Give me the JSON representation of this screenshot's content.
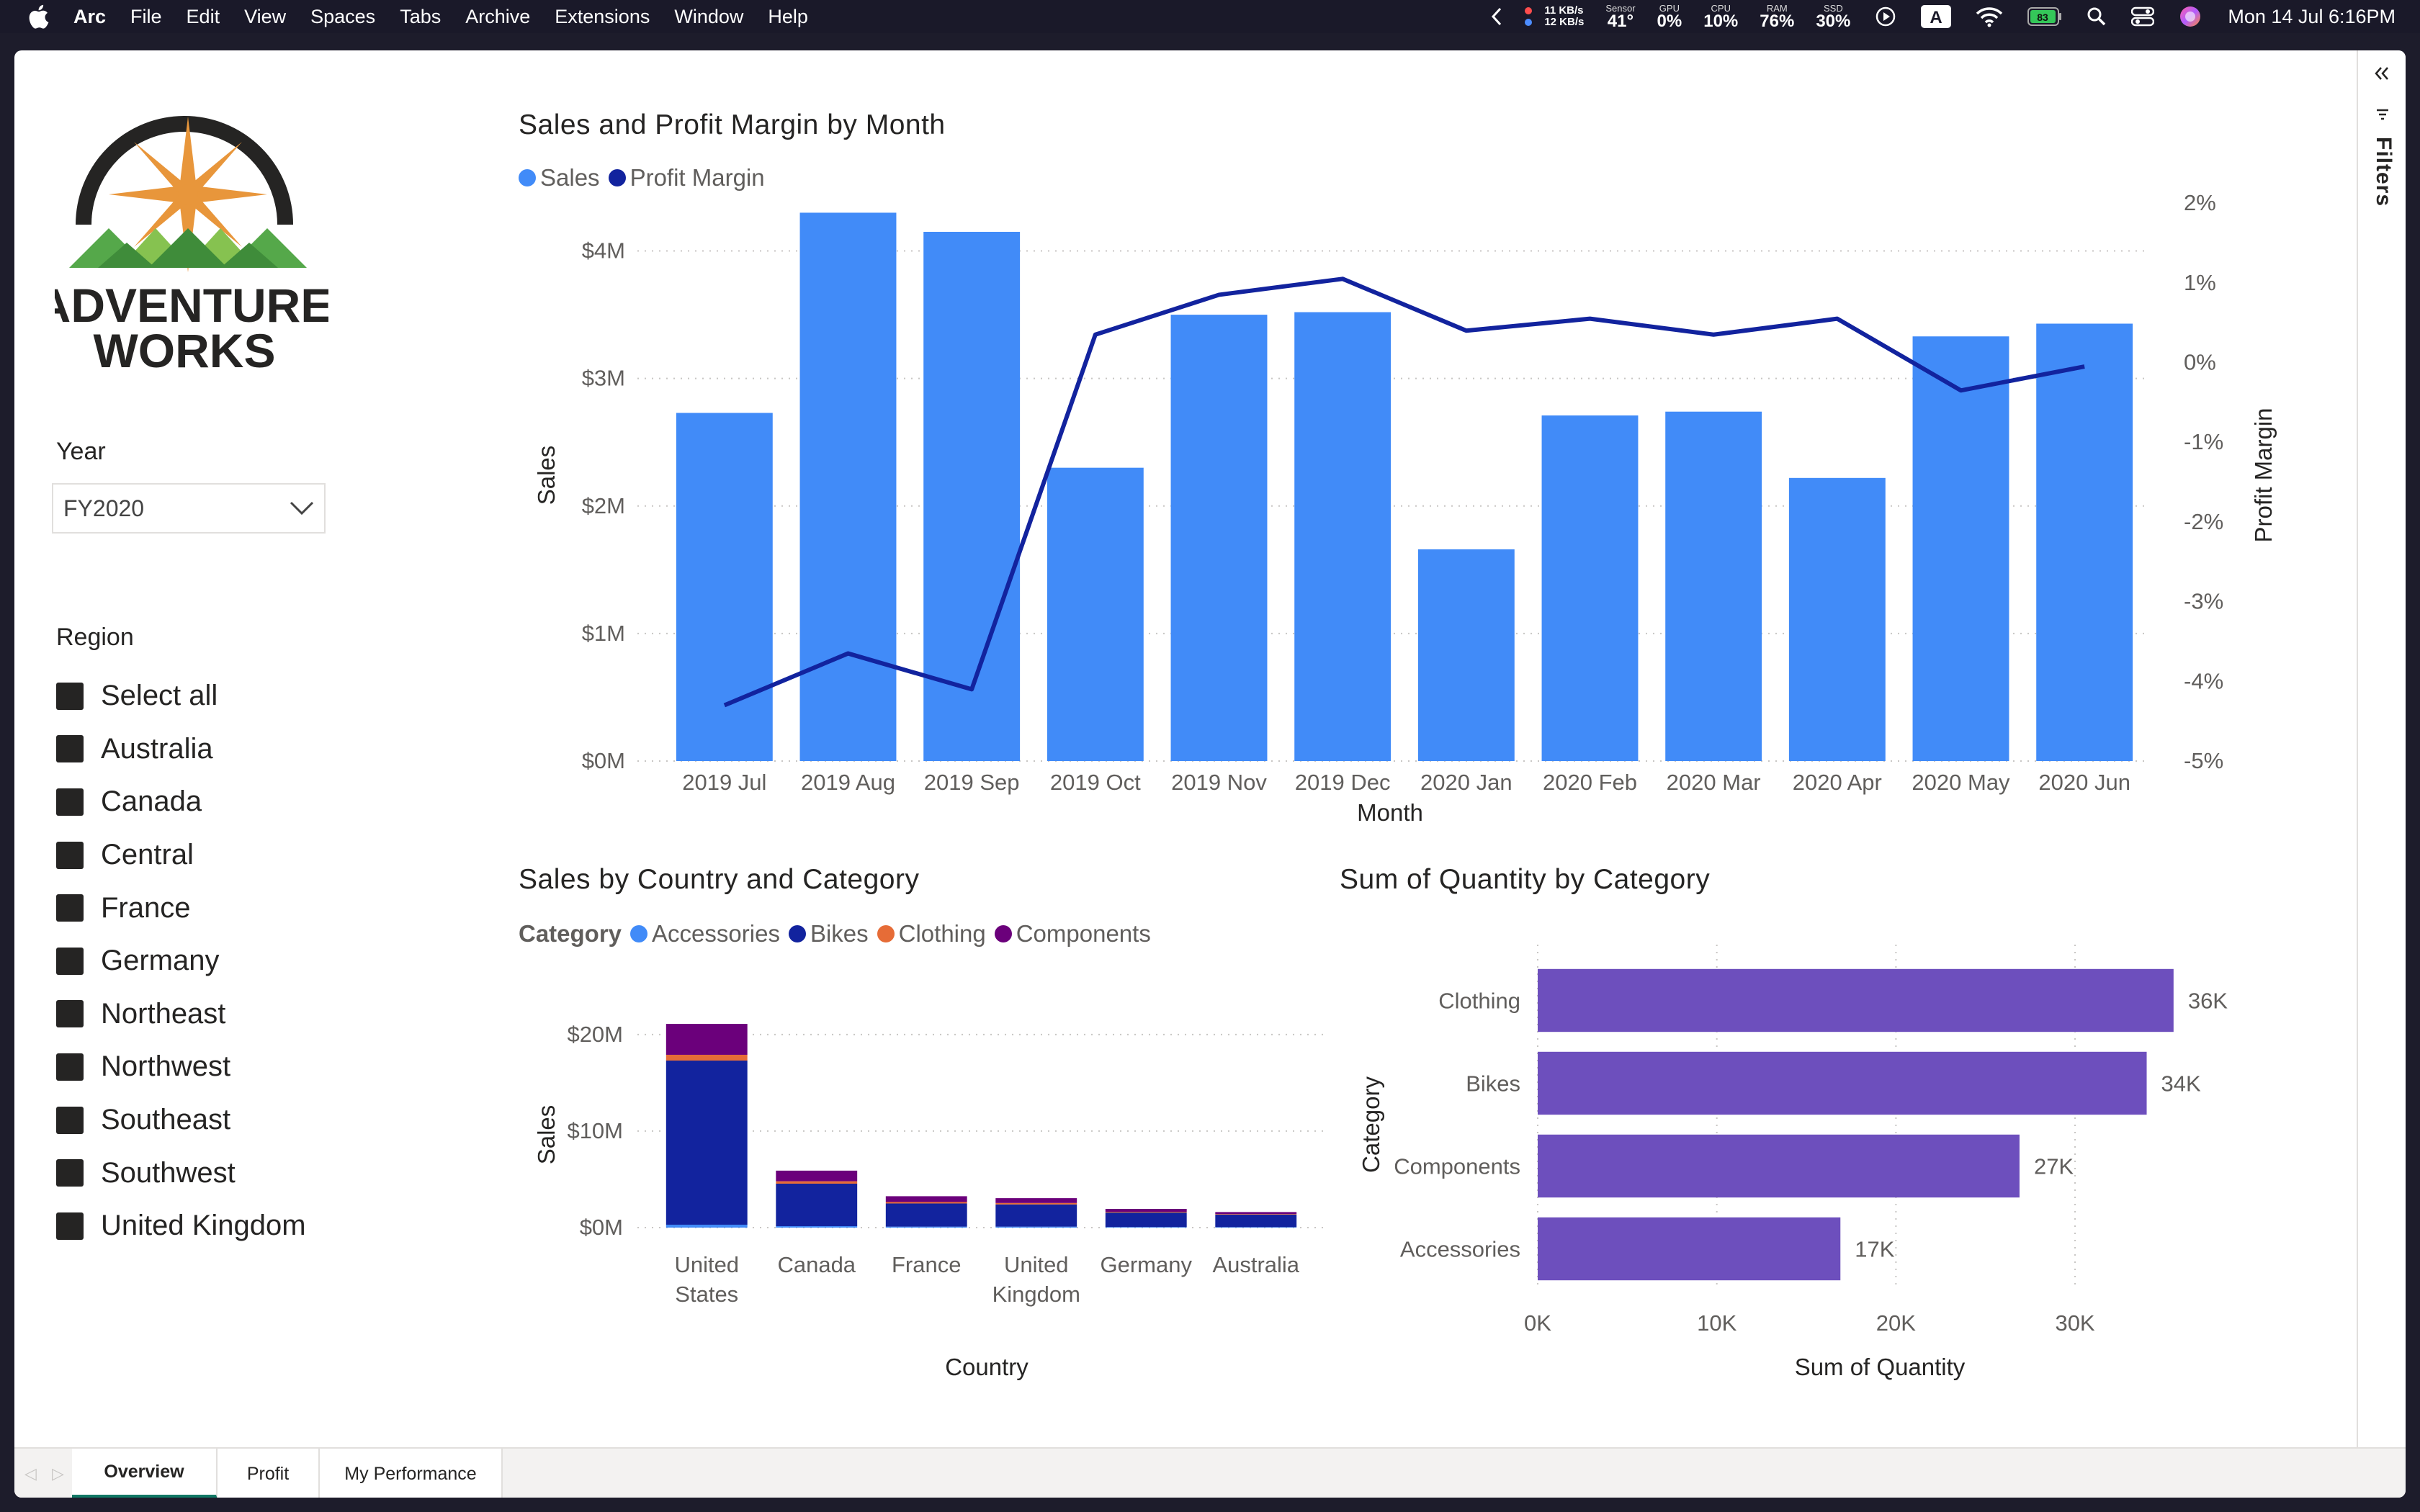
{
  "menubar": {
    "app": "Arc",
    "items": [
      "File",
      "Edit",
      "View",
      "Spaces",
      "Tabs",
      "Archive",
      "Extensions",
      "Window",
      "Help"
    ],
    "net_up": "11 KB/s",
    "net_down": "12 KB/s",
    "stats": [
      {
        "label": "Sensor",
        "value": "41°"
      },
      {
        "label": "GPU",
        "value": "0%"
      },
      {
        "label": "CPU",
        "value": "10%"
      },
      {
        "label": "RAM",
        "value": "76%"
      },
      {
        "label": "SSD",
        "value": "30%"
      }
    ],
    "keyboard_badge": "A",
    "battery": "83",
    "clock": "Mon 14 Jul  6:16PM"
  },
  "logo": {
    "line1": "ADVENTURE",
    "line2": "WORKS"
  },
  "year_slicer": {
    "title": "Year",
    "selected": "FY2020"
  },
  "region_slicer": {
    "title": "Region",
    "items": [
      "Select all",
      "Australia",
      "Canada",
      "Central",
      "France",
      "Germany",
      "Northeast",
      "Northwest",
      "Southeast",
      "Southwest",
      "United Kingdom"
    ]
  },
  "filters_label": "Filters",
  "page_tabs": [
    "Overview",
    "Profit",
    "My Performance"
  ],
  "colors": {
    "sales": "#418bf8",
    "profit_margin": "#12239e",
    "accessories": "#418bf8",
    "bikes": "#12239e",
    "clothing": "#e66c37",
    "components": "#6b007b",
    "quantity": "#6d4fbd"
  },
  "chart_data": [
    {
      "type": "bar+line",
      "title": "Sales and Profit Margin by Month",
      "legend": [
        "Sales",
        "Profit Margin"
      ],
      "xlabel": "Month",
      "ylabel": "Sales",
      "y2label": "Profit Margin",
      "categories": [
        "2019 Jul",
        "2019 Aug",
        "2019 Sep",
        "2019 Oct",
        "2019 Nov",
        "2019 Dec",
        "2020 Jan",
        "2020 Feb",
        "2020 Mar",
        "2020 Apr",
        "2020 May",
        "2020 Jun"
      ],
      "sales": [
        2.73,
        4.3,
        4.15,
        2.3,
        3.5,
        3.52,
        1.66,
        2.71,
        2.74,
        2.22,
        3.33,
        3.43
      ],
      "profit_margin": [
        -4.3,
        -3.65,
        -4.1,
        0.35,
        0.85,
        1.05,
        0.4,
        0.55,
        0.35,
        0.55,
        -0.35,
        -0.05
      ],
      "ylim": [
        0,
        4.5
      ],
      "y_ticks": [
        "$0M",
        "$1M",
        "$2M",
        "$3M",
        "$4M"
      ],
      "y2lim": [
        -5,
        2.2
      ],
      "y2_ticks": [
        "-5%",
        "-4%",
        "-3%",
        "-2%",
        "-1%",
        "0%",
        "1%",
        "2%"
      ]
    },
    {
      "type": "stacked-bar",
      "title": "Sales by Country and Category",
      "legend_title": "Category",
      "legend": [
        "Accessories",
        "Bikes",
        "Clothing",
        "Components"
      ],
      "xlabel": "Country",
      "ylabel": "Sales",
      "categories": [
        "United States",
        "Canada",
        "France",
        "United Kingdom",
        "Germany",
        "Australia"
      ],
      "series": [
        {
          "name": "Accessories",
          "values": [
            0.3,
            0.15,
            0.1,
            0.1,
            0.06,
            0.05
          ]
        },
        {
          "name": "Bikes",
          "values": [
            17.0,
            4.4,
            2.4,
            2.3,
            1.5,
            1.3
          ]
        },
        {
          "name": "Clothing",
          "values": [
            0.6,
            0.25,
            0.15,
            0.15,
            0.08,
            0.06
          ]
        },
        {
          "name": "Components",
          "values": [
            3.2,
            1.1,
            0.6,
            0.5,
            0.3,
            0.2
          ]
        }
      ],
      "ylim": [
        0,
        22
      ],
      "y_ticks": [
        "$0M",
        "$10M",
        "$20M"
      ]
    },
    {
      "type": "horizontal-bar",
      "title": "Sum of Quantity by Category",
      "xlabel": "Sum of Quantity",
      "ylabel": "Category",
      "categories": [
        "Clothing",
        "Bikes",
        "Components",
        "Accessories"
      ],
      "values": [
        35500,
        34000,
        26900,
        16900
      ],
      "data_labels": [
        "36K",
        "34K",
        "27K",
        "17K"
      ],
      "xlim": [
        0,
        38000
      ],
      "x_ticks": [
        "0K",
        "10K",
        "20K",
        "30K"
      ]
    }
  ]
}
